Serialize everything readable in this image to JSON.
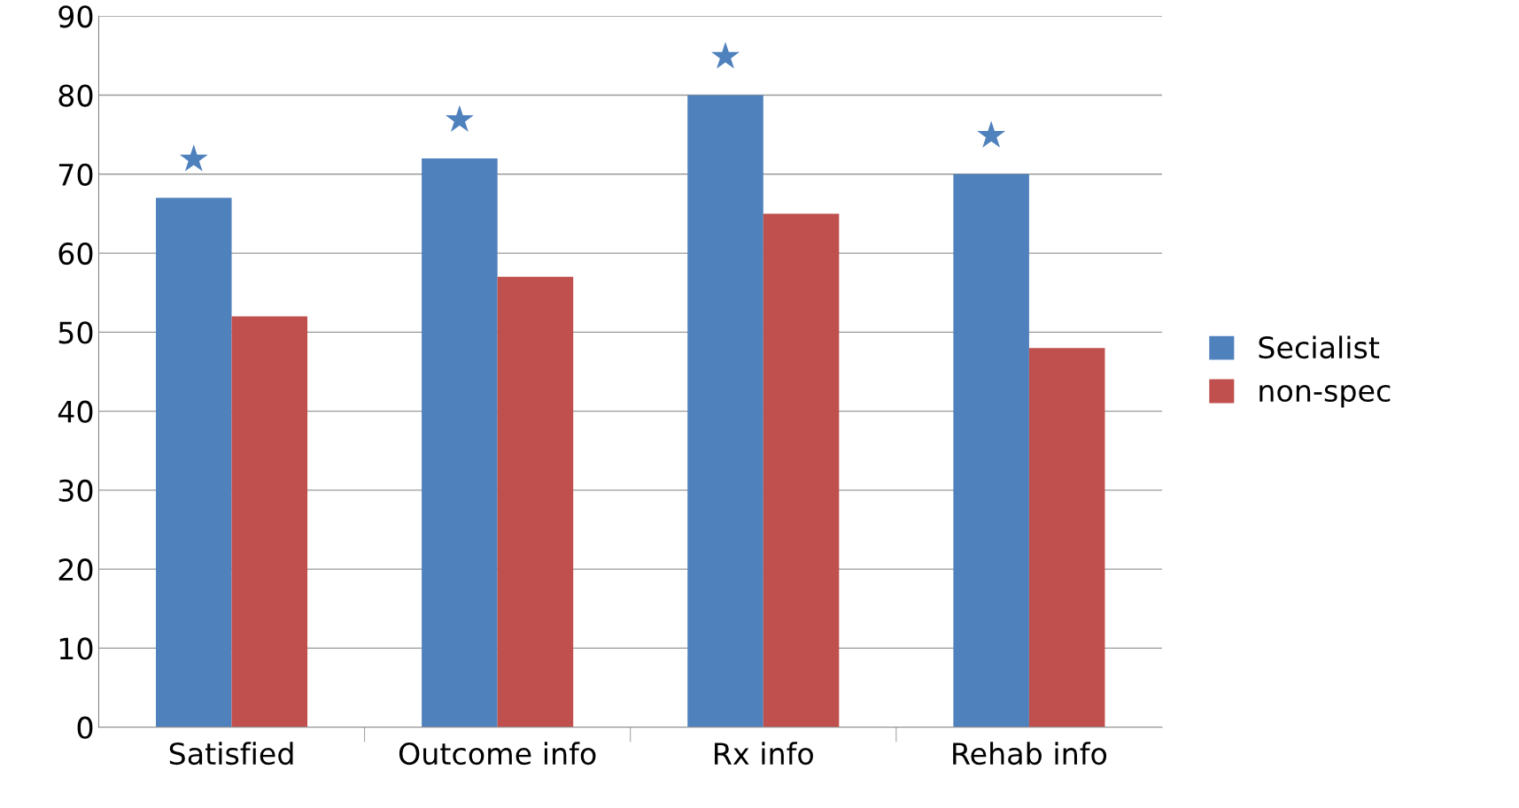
{
  "chart_data": {
    "type": "bar",
    "categories": [
      "Satisfied",
      "Outcome info",
      "Rx info",
      "Rehab info"
    ],
    "series": [
      {
        "name": "Secialist",
        "color": "#4f81bd",
        "values": [
          67,
          72,
          80,
          70
        ]
      },
      {
        "name": "non-spec",
        "color": "#c0504d",
        "values": [
          52,
          57,
          65,
          48
        ]
      }
    ],
    "ylim": [
      0,
      90
    ],
    "yticks": [
      0,
      10,
      20,
      30,
      40,
      50,
      60,
      70,
      80,
      90
    ],
    "grid": "y",
    "legend": "right",
    "annotations": [
      "★",
      "★",
      "★",
      "★"
    ]
  }
}
